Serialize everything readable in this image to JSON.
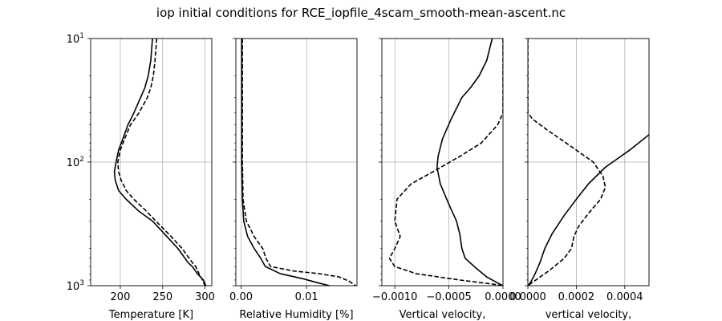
{
  "chart_data": {
    "title": "iop initial conditions for RCE_iopfile_4scam_smooth-mean-ascent.nc",
    "type": "line",
    "y_axis": {
      "scale": "log",
      "inverted": true,
      "range": [
        1000,
        10
      ],
      "ticks": [
        {
          "value": 10,
          "base": "10",
          "exp": "1"
        },
        {
          "value": 100,
          "base": "10",
          "exp": "2"
        },
        {
          "value": 1000,
          "base": "10",
          "exp": "3"
        }
      ]
    },
    "grid": true,
    "panels": [
      {
        "xlabel": "Temperature [K]",
        "xlim": [
          165,
          308
        ],
        "xticks": [
          {
            "value": 200,
            "label": "200"
          },
          {
            "value": 250,
            "label": "250"
          },
          {
            "value": 300,
            "label": "300"
          }
        ],
        "series": [
          {
            "style": "solid",
            "points": [
              [
                238,
                10
              ],
              [
                236,
                15
              ],
              [
                233,
                20
              ],
              [
                229,
                25
              ],
              [
                224,
                30
              ],
              [
                216,
                40
              ],
              [
                209,
                50
              ],
              [
                203,
                65
              ],
              [
                198,
                80
              ],
              [
                195,
                100
              ],
              [
                193,
                120
              ],
              [
                194,
                140
              ],
              [
                198,
                170
              ],
              [
                207,
                200
              ],
              [
                222,
                250
              ],
              [
                238,
                300
              ],
              [
                255,
                400
              ],
              [
                268,
                500
              ],
              [
                280,
                650
              ],
              [
                285,
                700
              ],
              [
                291,
                800
              ],
              [
                298,
                900
              ],
              [
                301,
                1000
              ]
            ]
          },
          {
            "style": "dashed",
            "points": [
              [
                243,
                10
              ],
              [
                241,
                15
              ],
              [
                239,
                20
              ],
              [
                236,
                25
              ],
              [
                232,
                30
              ],
              [
                222,
                40
              ],
              [
                212,
                50
              ],
              [
                205,
                65
              ],
              [
                200,
                80
              ],
              [
                197,
                100
              ],
              [
                198,
                120
              ],
              [
                201,
                140
              ],
              [
                207,
                170
              ],
              [
                216,
                200
              ],
              [
                231,
                250
              ],
              [
                242,
                300
              ],
              [
                260,
                400
              ],
              [
                273,
                500
              ],
              [
                285,
                650
              ],
              [
                289,
                700
              ],
              [
                293,
                800
              ],
              [
                297,
                900
              ],
              [
                300,
                1000
              ]
            ]
          }
        ]
      },
      {
        "xlabel": "Relative Humidity [%]",
        "xlim": [
          -0.0008,
          0.0177
        ],
        "xticks": [
          {
            "value": 0,
            "label": "0.00"
          },
          {
            "value": 0.01,
            "label": "0.01"
          }
        ],
        "series": [
          {
            "style": "solid",
            "points": [
              [
                0.0001,
                10
              ],
              [
                0.0001,
                50
              ],
              [
                0.0001,
                100
              ],
              [
                0.0002,
                200
              ],
              [
                0.0004,
                300
              ],
              [
                0.001,
                400
              ],
              [
                0.002,
                500
              ],
              [
                0.003,
                600
              ],
              [
                0.0037,
                700
              ],
              [
                0.006,
                800
              ],
              [
                0.0095,
                880
              ],
              [
                0.0118,
                950
              ],
              [
                0.0135,
                1000
              ]
            ]
          },
          {
            "style": "dashed",
            "points": [
              [
                0.0002,
                10
              ],
              [
                0.0002,
                50
              ],
              [
                0.0002,
                100
              ],
              [
                0.0003,
                200
              ],
              [
                0.0008,
                300
              ],
              [
                0.002,
                400
              ],
              [
                0.0033,
                500
              ],
              [
                0.0038,
                600
              ],
              [
                0.0045,
                700
              ],
              [
                0.008,
                760
              ],
              [
                0.012,
                800
              ],
              [
                0.015,
                850
              ],
              [
                0.0165,
                920
              ],
              [
                0.0175,
                1000
              ]
            ]
          }
        ]
      },
      {
        "xlabel": "Vertical velocity,",
        "xlim": [
          -0.00112,
          0.0
        ],
        "xticks": [
          {
            "value": -0.001,
            "label": "−0.0010"
          },
          {
            "value": -0.0005,
            "label": "−0.0005"
          },
          {
            "value": 0.0,
            "label": "0.0000"
          }
        ],
        "series": [
          {
            "style": "solid",
            "points": [
              [
                -0.0001,
                10
              ],
              [
                -0.00015,
                15
              ],
              [
                -0.00022,
                20
              ],
              [
                -0.0003,
                25
              ],
              [
                -0.00038,
                30
              ],
              [
                -0.00048,
                45
              ],
              [
                -0.00056,
                65
              ],
              [
                -0.0006,
                90
              ],
              [
                -0.00061,
                110
              ],
              [
                -0.00058,
                150
              ],
              [
                -0.0005,
                220
              ],
              [
                -0.00043,
                300
              ],
              [
                -0.0004,
                380
              ],
              [
                -0.00038,
                500
              ],
              [
                -0.00035,
                600
              ],
              [
                -0.00025,
                720
              ],
              [
                -0.00015,
                850
              ],
              [
                -5e-05,
                950
              ],
              [
                0.0,
                1000
              ]
            ]
          },
          {
            "style": "dashed",
            "points": [
              [
                0.0,
                10
              ],
              [
                0.0,
                20
              ],
              [
                0.0,
                40
              ],
              [
                -5e-05,
                50
              ],
              [
                -0.0002,
                70
              ],
              [
                -0.0004,
                90
              ],
              [
                -0.00065,
                120
              ],
              [
                -0.00085,
                150
              ],
              [
                -0.00098,
                200
              ],
              [
                -0.001,
                300
              ],
              [
                -0.00095,
                400
              ],
              [
                -0.001,
                500
              ],
              [
                -0.00105,
                600
              ],
              [
                -0.001,
                700
              ],
              [
                -0.0008,
                800
              ],
              [
                -0.0004,
                900
              ],
              [
                -0.0001,
                970
              ],
              [
                0.0,
                1000
              ]
            ]
          }
        ]
      },
      {
        "xlabel": "vertical velocity,",
        "xlim": [
          0.0,
          0.0005
        ],
        "xticks": [
          {
            "value": 0.0,
            "label": "0.0000"
          },
          {
            "value": 0.0002,
            "label": "0.0002"
          },
          {
            "value": 0.0004,
            "label": "0.0004"
          }
        ],
        "series": [
          {
            "style": "solid",
            "points": [
              [
                0.0005,
                60
              ],
              [
                0.00042,
                80
              ],
              [
                0.00032,
                110
              ],
              [
                0.00025,
                150
              ],
              [
                0.0002,
                200
              ],
              [
                0.00015,
                270
              ],
              [
                0.0001,
                380
              ],
              [
                7e-05,
                500
              ],
              [
                5e-05,
                650
              ],
              [
                3e-05,
                800
              ],
              [
                1e-05,
                950
              ],
              [
                0.0,
                1000
              ]
            ]
          },
          {
            "style": "dashed",
            "points": [
              [
                0.0,
                10
              ],
              [
                0.0,
                40
              ],
              [
                2e-05,
                45
              ],
              [
                8e-05,
                55
              ],
              [
                0.00018,
                75
              ],
              [
                0.00027,
                100
              ],
              [
                0.00031,
                130
              ],
              [
                0.00032,
                160
              ],
              [
                0.0003,
                200
              ],
              [
                0.00025,
                260
              ],
              [
                0.00021,
                330
              ],
              [
                0.00019,
                400
              ],
              [
                0.00018,
                500
              ],
              [
                0.00015,
                600
              ],
              [
                9e-05,
                750
              ],
              [
                4e-05,
                880
              ],
              [
                0.0,
                1000
              ]
            ]
          }
        ]
      }
    ]
  }
}
